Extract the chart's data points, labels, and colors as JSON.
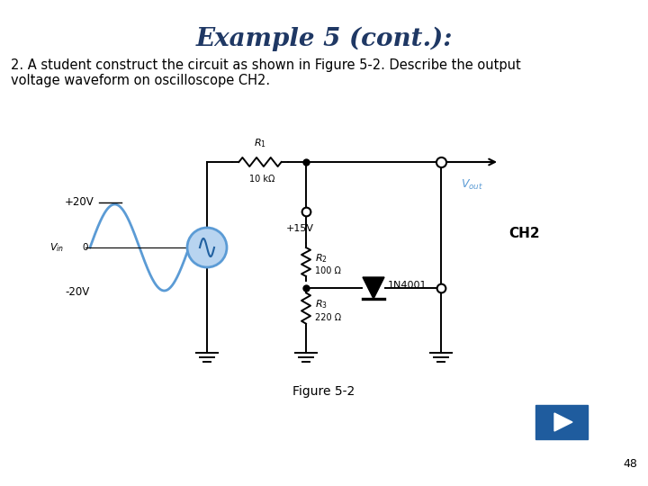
{
  "title": "Example 5 (cont.):",
  "title_color": "#1F3864",
  "title_fontsize": 20,
  "body_text_1": "2. A student construct the circuit as shown in Figure 5-2. Describe the output",
  "body_text_2": "voltage waveform on oscilloscope CH2.",
  "body_fontsize": 10.5,
  "figure_label": "Figure 5-2",
  "page_number": "48",
  "background_color": "#FFFFFF",
  "sine_color": "#5B9BD5",
  "ch2_label": "CH2",
  "r1_val": "10 kΩ",
  "r2_val": "100 Ω",
  "r3_val": "220 Ω",
  "diode_label": "1N4001",
  "v15_label": "+15V",
  "v20p_label": "+20V",
  "v20n_label": "-20V",
  "button_color": "#1F5C9E"
}
